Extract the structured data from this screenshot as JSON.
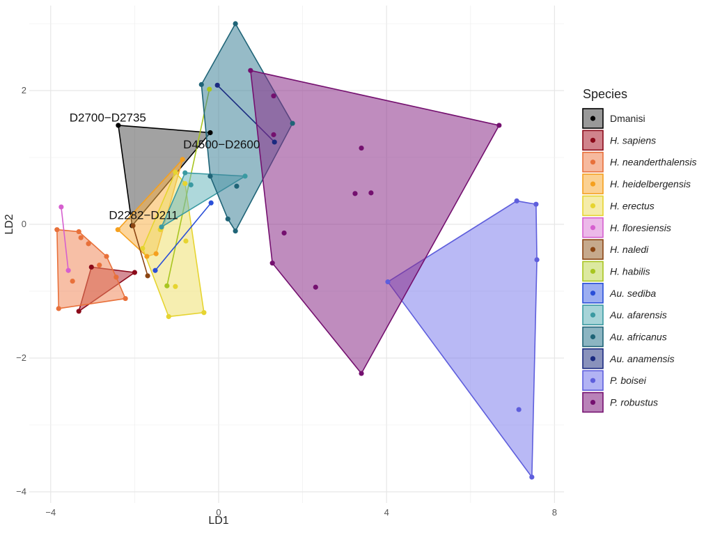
{
  "chart_data": {
    "type": "scatter",
    "subtype": "convex-hull scatter",
    "xlabel": "LD1",
    "ylabel": "LD2",
    "xlim": [
      -4.5,
      8.1
    ],
    "ylim": [
      -4.15,
      3.25
    ],
    "x_ticks": [
      -4,
      0,
      4,
      8
    ],
    "y_ticks": [
      2,
      0,
      -2,
      -4
    ],
    "x_tick_labels": [
      "−4",
      "0",
      "4",
      "8"
    ],
    "y_tick_labels": [
      "2",
      "0",
      "−2",
      "−4"
    ],
    "grid": true,
    "legend": {
      "title": "Species",
      "placement": "right"
    },
    "series": [
      {
        "name": "Dmanisi",
        "italic": false,
        "color": "#000000",
        "fill": "#555555",
        "points": [
          [
            -2.39,
            1.48
          ],
          [
            -0.2,
            1.37
          ],
          [
            -2.06,
            -0.02
          ]
        ]
      },
      {
        "name": "H. sapiens",
        "italic": true,
        "color": "#8B0A1A",
        "fill": "#B03040",
        "points": [
          [
            -3.03,
            -0.64
          ],
          [
            -3.33,
            -1.3
          ],
          [
            -2.0,
            -0.72
          ]
        ]
      },
      {
        "name": "H. neanderthalensis",
        "italic": true,
        "color": "#E8703A",
        "fill": "#F08A5D",
        "points": [
          [
            -3.85,
            -0.08
          ],
          [
            -3.33,
            -0.11
          ],
          [
            -3.28,
            -0.2
          ],
          [
            -3.1,
            -0.29
          ],
          [
            -2.67,
            -0.48
          ],
          [
            -2.22,
            -1.11
          ],
          [
            -3.81,
            -1.26
          ],
          [
            -3.48,
            -0.85
          ],
          [
            -2.84,
            -0.61
          ],
          [
            -2.44,
            -0.79
          ]
        ]
      },
      {
        "name": "H. heidelbergensis",
        "italic": true,
        "color": "#F5A01E",
        "fill": "#F9B24A",
        "points": [
          [
            -0.86,
            0.97
          ],
          [
            -2.4,
            -0.08
          ],
          [
            -1.71,
            -0.48
          ],
          [
            -1.49,
            -0.44
          ]
        ]
      },
      {
        "name": "H. erectus",
        "italic": true,
        "color": "#E6D430",
        "fill": "#EEE070",
        "points": [
          [
            -1.03,
            0.78
          ],
          [
            -0.8,
            0.61
          ],
          [
            -1.19,
            -1.38
          ],
          [
            -0.35,
            -1.32
          ],
          [
            -0.78,
            -0.25
          ],
          [
            -1.03,
            -0.93
          ],
          [
            -1.81,
            -0.36
          ],
          [
            -1.39,
            -0.08
          ]
        ]
      },
      {
        "name": "H. floresiensis",
        "italic": true,
        "color": "#D65FCF",
        "fill": "#E08ADB",
        "points": [
          [
            -3.75,
            0.26
          ],
          [
            -3.58,
            -0.69
          ]
        ]
      },
      {
        "name": "H. naledi",
        "italic": true,
        "color": "#8B4513",
        "fill": "#A0703F",
        "points": [
          [
            -2.04,
            -0.02
          ],
          [
            -1.69,
            -0.77
          ]
        ]
      },
      {
        "name": "H. habilis",
        "italic": true,
        "color": "#A8C520",
        "fill": "#C5DA60",
        "points": [
          [
            -0.22,
            2.02
          ],
          [
            -1.23,
            -0.92
          ]
        ]
      },
      {
        "name": "Au. sediba",
        "italic": true,
        "color": "#2A4FD8",
        "fill": "#5A78E8",
        "points": [
          [
            -0.18,
            0.32
          ],
          [
            -1.51,
            -0.69
          ]
        ]
      },
      {
        "name": "Au. afarensis",
        "italic": true,
        "color": "#3A9AA2",
        "fill": "#6BB8BE",
        "points": [
          [
            -0.8,
            0.77
          ],
          [
            -0.66,
            0.59
          ],
          [
            0.63,
            0.72
          ],
          [
            -1.36,
            -0.04
          ]
        ]
      },
      {
        "name": "Au. africanus",
        "italic": true,
        "color": "#1F6477",
        "fill": "#3F8399",
        "points": [
          [
            0.4,
            3.0
          ],
          [
            -0.41,
            2.09
          ],
          [
            1.76,
            1.51
          ],
          [
            0.4,
            -0.1
          ],
          [
            0.22,
            0.08
          ],
          [
            -0.2,
            0.72
          ],
          [
            0.43,
            0.57
          ]
        ]
      },
      {
        "name": "Au. anamensis",
        "italic": true,
        "color": "#1A2A80",
        "fill": "#3A4A90",
        "points": [
          [
            -0.03,
            2.08
          ],
          [
            1.33,
            1.23
          ]
        ]
      },
      {
        "name": "P. boisei",
        "italic": true,
        "color": "#5E5EDC",
        "fill": "#7F80EC",
        "points": [
          [
            4.03,
            -0.86
          ],
          [
            7.1,
            0.35
          ],
          [
            7.56,
            0.3
          ],
          [
            7.58,
            -0.53
          ],
          [
            7.15,
            -2.77
          ],
          [
            7.46,
            -3.78
          ]
        ]
      },
      {
        "name": "P. robustus",
        "italic": true,
        "color": "#74106F",
        "fill": "#8A2E88",
        "points": [
          [
            0.76,
            2.3
          ],
          [
            6.68,
            1.48
          ],
          [
            3.4,
            -2.23
          ],
          [
            1.28,
            -0.58
          ],
          [
            1.31,
            1.92
          ],
          [
            1.31,
            1.34
          ],
          [
            3.4,
            1.14
          ],
          [
            3.25,
            0.46
          ],
          [
            3.63,
            0.47
          ],
          [
            1.56,
            -0.13
          ],
          [
            2.31,
            -0.94
          ]
        ]
      }
    ],
    "annotations": [
      {
        "text": "D2700−D2735",
        "x": -2.64,
        "y": 1.6
      },
      {
        "text": "D4500−D2600",
        "x": 0.07,
        "y": 1.2
      },
      {
        "text": "D2282−D211",
        "x": -1.79,
        "y": 0.14
      }
    ]
  }
}
